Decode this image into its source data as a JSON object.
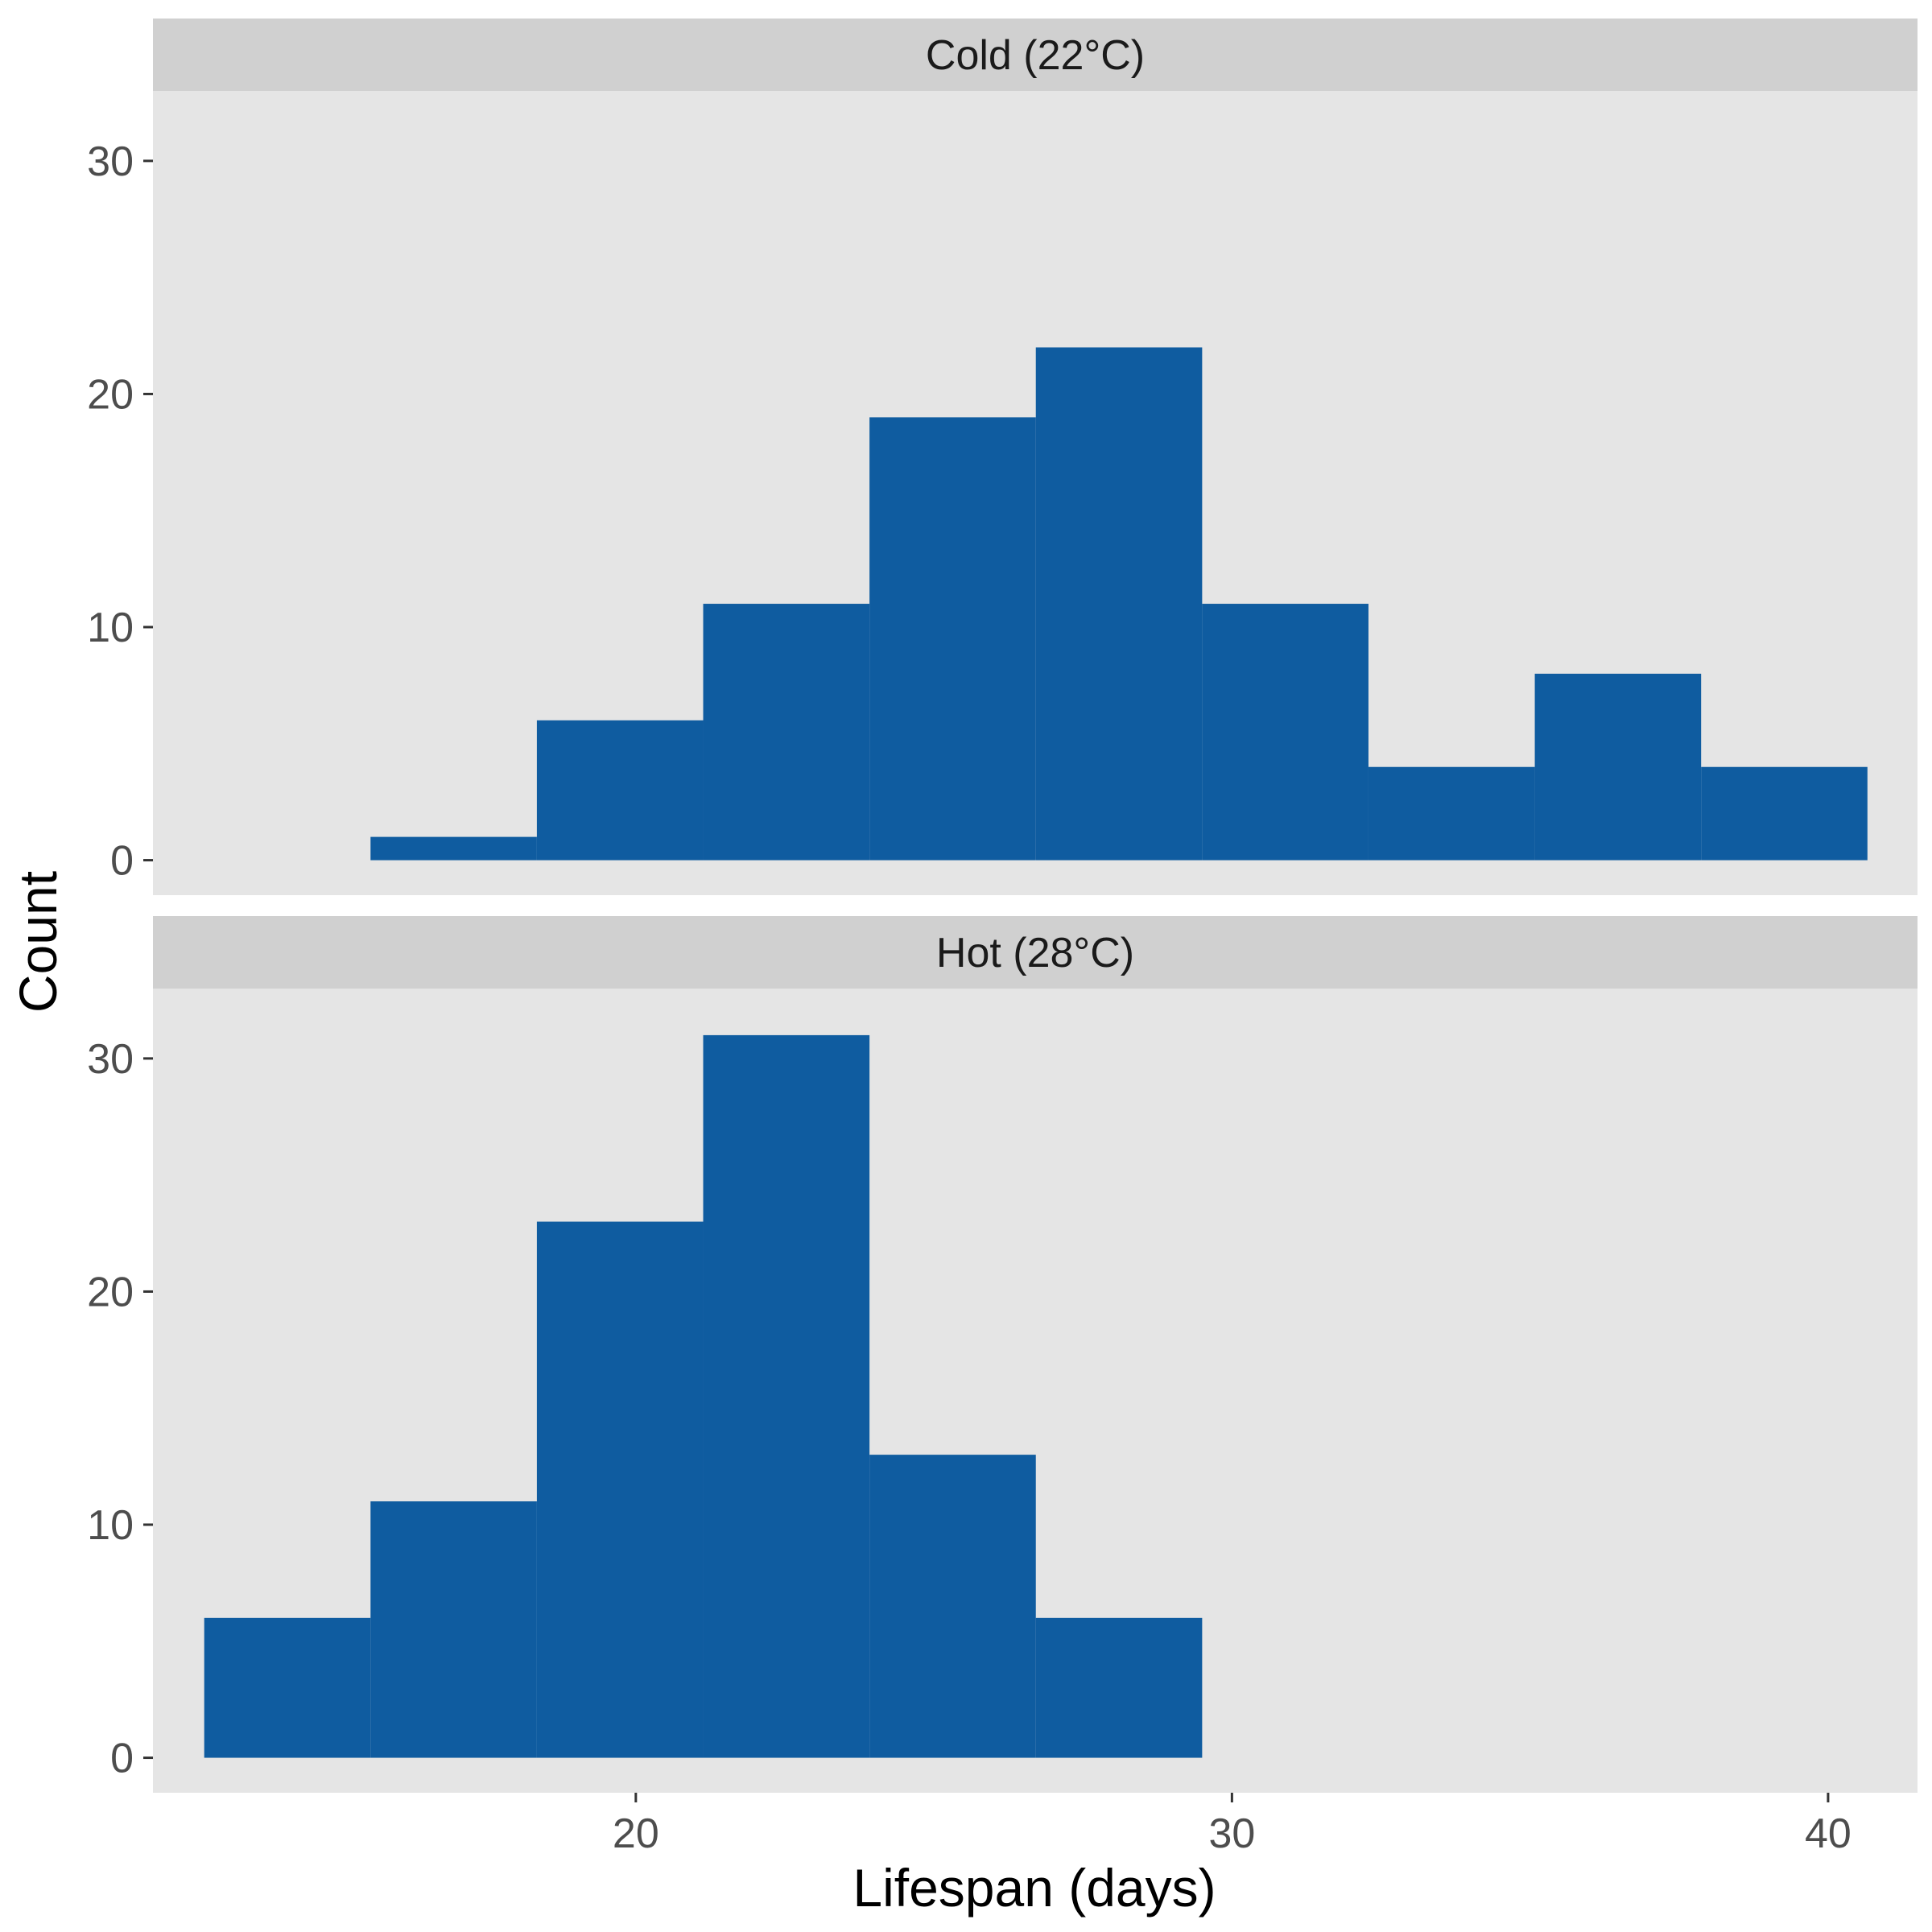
{
  "chart_data": {
    "type": "bar",
    "subtype": "histogram",
    "layout": "faceted-vertical",
    "xlabel": "Lifespan (days)",
    "ylabel": "Count",
    "x_ticks": [
      20,
      30,
      40
    ],
    "y_ticks": [
      0,
      10,
      20,
      30
    ],
    "xlim": [
      11.9,
      41.5
    ],
    "ylim": [
      -1.5,
      33
    ],
    "bin_width": 2.79,
    "bar_color": "#0f5ca0",
    "panel_background": "#e5e5e5",
    "strip_background": "#d0d0d0",
    "grid": false,
    "legend": "none",
    "facets": [
      {
        "label": "Cold (22°C)",
        "bins": [
          {
            "x_start": 15.55,
            "x_end": 18.34,
            "count": 1
          },
          {
            "x_start": 18.34,
            "x_end": 21.13,
            "count": 6
          },
          {
            "x_start": 21.13,
            "x_end": 23.92,
            "count": 11
          },
          {
            "x_start": 23.92,
            "x_end": 26.71,
            "count": 19
          },
          {
            "x_start": 26.71,
            "x_end": 29.5,
            "count": 22
          },
          {
            "x_start": 29.5,
            "x_end": 32.29,
            "count": 11
          },
          {
            "x_start": 32.29,
            "x_end": 35.08,
            "count": 4
          },
          {
            "x_start": 35.08,
            "x_end": 37.87,
            "count": 8
          },
          {
            "x_start": 37.87,
            "x_end": 40.66,
            "count": 4
          }
        ]
      },
      {
        "label": "Hot (28°C)",
        "bins": [
          {
            "x_start": 12.76,
            "x_end": 15.55,
            "count": 6
          },
          {
            "x_start": 15.55,
            "x_end": 18.34,
            "count": 11
          },
          {
            "x_start": 18.34,
            "x_end": 21.13,
            "count": 23
          },
          {
            "x_start": 21.13,
            "x_end": 23.92,
            "count": 31
          },
          {
            "x_start": 23.92,
            "x_end": 26.71,
            "count": 13
          },
          {
            "x_start": 26.71,
            "x_end": 29.5,
            "count": 6
          }
        ]
      }
    ]
  }
}
